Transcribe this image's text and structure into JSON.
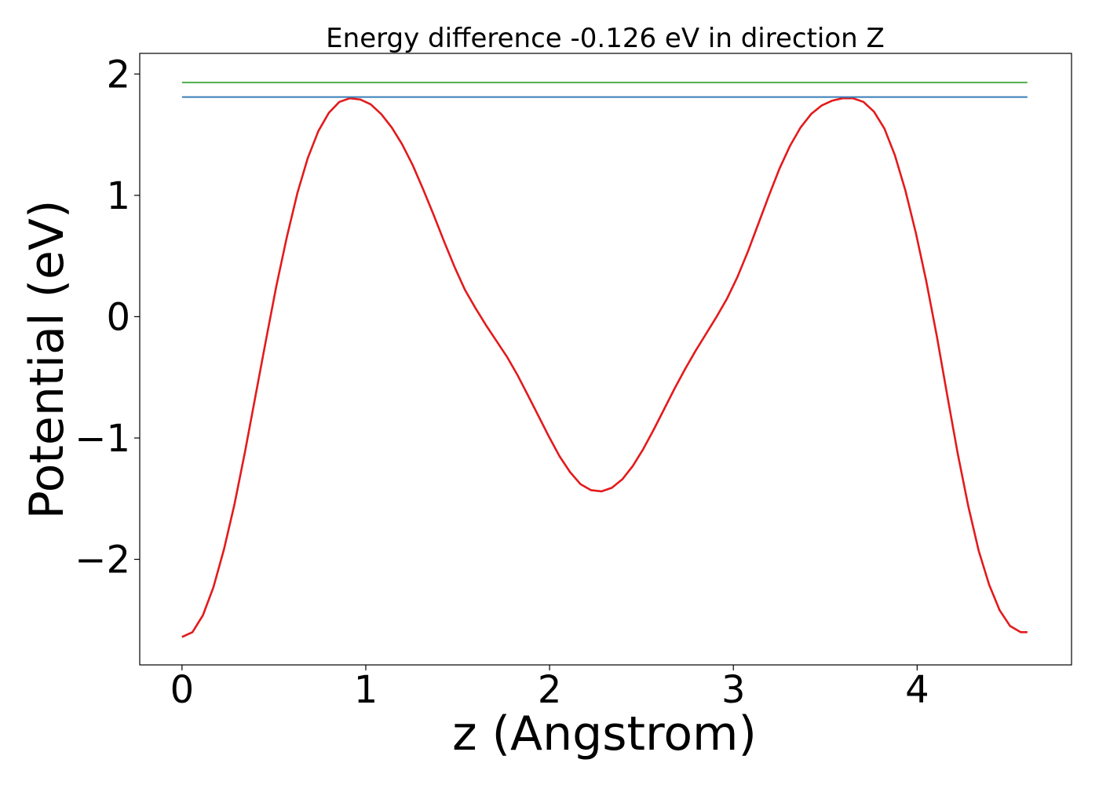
{
  "chart_data": {
    "type": "line",
    "title": "Energy difference -0.126 eV in direction Z",
    "xlabel": "z (Angstrom)",
    "ylabel": "Potential (eV)",
    "xlim": [
      -0.23,
      4.84
    ],
    "ylim": [
      -2.87,
      2.17
    ],
    "xticks": [
      0,
      1,
      2,
      3,
      4
    ],
    "xtick_labels": [
      "0",
      "1",
      "2",
      "3",
      "4"
    ],
    "yticks": [
      -2,
      -1,
      0,
      1,
      2
    ],
    "ytick_labels": [
      "−2",
      "−1",
      "0",
      "1",
      "2"
    ],
    "grid": false,
    "colors": {
      "potential": "#e31a1c",
      "max_level": "#4daf4a",
      "barrier_level": "#377eb8"
    },
    "series": [
      {
        "key": "potential",
        "type": "line",
        "x": [
          0.0,
          0.057,
          0.114,
          0.171,
          0.228,
          0.285,
          0.342,
          0.399,
          0.456,
          0.513,
          0.571,
          0.628,
          0.685,
          0.742,
          0.799,
          0.856,
          0.913,
          0.97,
          1.027,
          1.084,
          1.141,
          1.198,
          1.255,
          1.312,
          1.369,
          1.426,
          1.483,
          1.54,
          1.597,
          1.654,
          1.711,
          1.768,
          1.825,
          1.883,
          1.94,
          1.997,
          2.054,
          2.111,
          2.168,
          2.225,
          2.282,
          2.339,
          2.396,
          2.453,
          2.51,
          2.567,
          2.624,
          2.681,
          2.738,
          2.795,
          2.852,
          2.909,
          2.966,
          3.023,
          3.08,
          3.137,
          3.194,
          3.251,
          3.309,
          3.366,
          3.423,
          3.48,
          3.537,
          3.594,
          3.651,
          3.708,
          3.765,
          3.822,
          3.879,
          3.936,
          3.993,
          4.05,
          4.107,
          4.164,
          4.221,
          4.278,
          4.335,
          4.392,
          4.449,
          4.506,
          4.563,
          4.6
        ],
        "y": [
          -2.64,
          -2.6,
          -2.46,
          -2.23,
          -1.92,
          -1.55,
          -1.12,
          -0.66,
          -0.2,
          0.25,
          0.66,
          1.02,
          1.31,
          1.53,
          1.68,
          1.77,
          1.8,
          1.79,
          1.75,
          1.67,
          1.56,
          1.42,
          1.25,
          1.05,
          0.84,
          0.62,
          0.41,
          0.22,
          0.07,
          -0.07,
          -0.2,
          -0.33,
          -0.48,
          -0.65,
          -0.82,
          -0.99,
          -1.15,
          -1.28,
          -1.38,
          -1.43,
          -1.44,
          -1.41,
          -1.34,
          -1.23,
          -1.09,
          -0.93,
          -0.76,
          -0.59,
          -0.43,
          -0.28,
          -0.14,
          0.0,
          0.15,
          0.33,
          0.54,
          0.77,
          1.0,
          1.22,
          1.41,
          1.56,
          1.67,
          1.74,
          1.78,
          1.8,
          1.8,
          1.77,
          1.69,
          1.55,
          1.33,
          1.04,
          0.69,
          0.29,
          -0.16,
          -0.65,
          -1.13,
          -1.56,
          -1.93,
          -2.21,
          -2.42,
          -2.55,
          -2.6,
          -2.6
        ]
      },
      {
        "key": "max_level",
        "type": "hline",
        "x": [
          0.0,
          4.6
        ],
        "y": [
          1.93,
          1.93
        ]
      },
      {
        "key": "barrier_level",
        "type": "hline",
        "x": [
          0.0,
          4.6
        ],
        "y": [
          1.81,
          1.81
        ]
      }
    ]
  }
}
